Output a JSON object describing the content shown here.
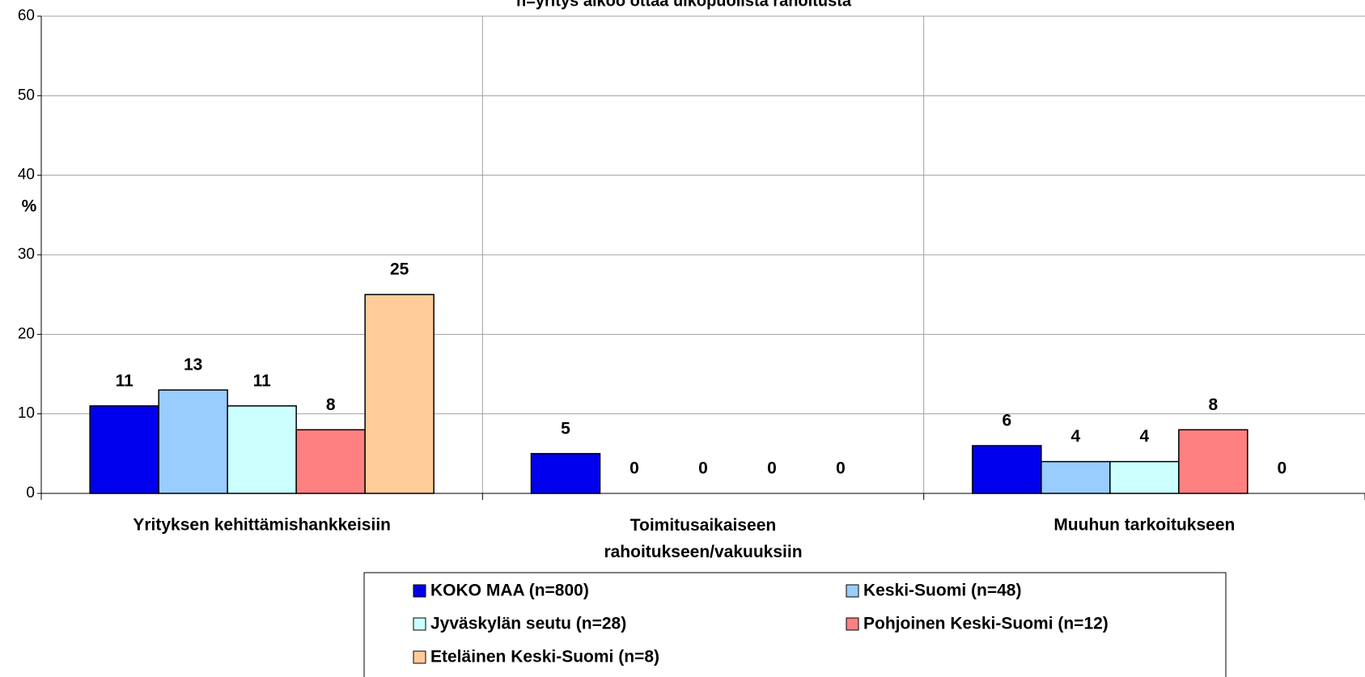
{
  "chart_data": {
    "type": "bar",
    "title": "n=yritys aikoo ottaa ulkopuolista rahoitusta",
    "y_label": "%",
    "categories": [
      "Yrityksen kehittämishankkeisiin",
      "Toimitusaikaiseen rahoitukseen/vakuuksiin",
      "Muuhun tarkoitukseen"
    ],
    "series": [
      {
        "name": "KOKO MAA (n=800)",
        "color": "#0000ee",
        "values": [
          11,
          5,
          6
        ]
      },
      {
        "name": "Keski-Suomi (n=48)",
        "color": "#99ccff",
        "values": [
          13,
          0,
          4
        ]
      },
      {
        "name": "Jyväskylän seutu (n=28)",
        "color": "#ccffff",
        "values": [
          11,
          0,
          4
        ]
      },
      {
        "name": "Pohjoinen Keski-Suomi (n=12)",
        "color": "#ff8080",
        "values": [
          8,
          0,
          8
        ]
      },
      {
        "name": "Eteläinen Keski-Suomi (n=8)",
        "color": "#ffcc99",
        "values": [
          25,
          0,
          0
        ]
      }
    ],
    "ylim": [
      0,
      60
    ],
    "yticks": [
      0,
      10,
      20,
      30,
      40,
      50,
      60
    ],
    "grid": true,
    "legend": "bottom"
  }
}
